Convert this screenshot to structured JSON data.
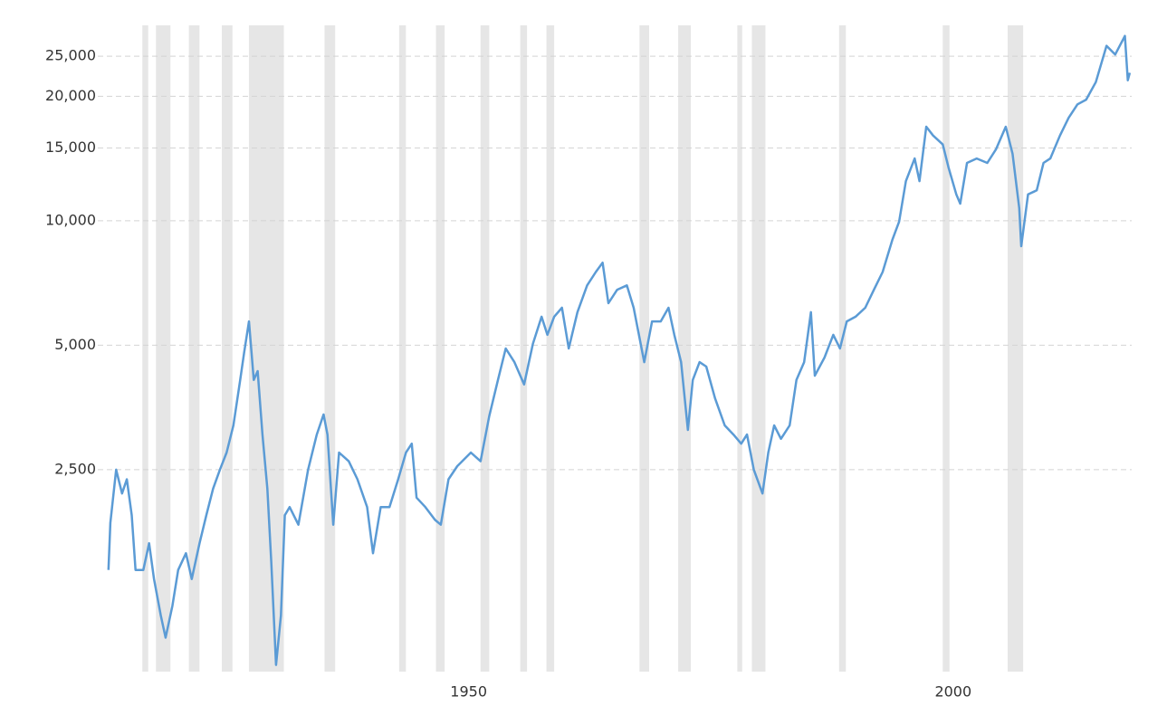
{
  "chart_data": {
    "type": "line",
    "ylog": true,
    "grid": true,
    "color": "#5b9bd5",
    "recession_color": "#e6e6e6",
    "xlim": [
      1914,
      2020.7
    ],
    "xticks": [
      1950,
      2000
    ],
    "ylim": [
      812,
      29700
    ],
    "yticks": [
      {
        "value": 2500,
        "label": "2,500"
      },
      {
        "value": 5000,
        "label": "5,000"
      },
      {
        "value": 10000,
        "label": "10,000"
      },
      {
        "value": 15000,
        "label": "15,000"
      },
      {
        "value": 20000,
        "label": "20,000"
      },
      {
        "value": 25000,
        "label": "25,000"
      }
    ],
    "recessions": [
      [
        1918.6,
        1919.2
      ],
      [
        1920.0,
        1921.5
      ],
      [
        1923.4,
        1924.5
      ],
      [
        1926.8,
        1927.9
      ],
      [
        1929.6,
        1933.2
      ],
      [
        1937.4,
        1938.5
      ],
      [
        1945.1,
        1945.8
      ],
      [
        1948.9,
        1949.8
      ],
      [
        1953.5,
        1954.4
      ],
      [
        1957.6,
        1958.3
      ],
      [
        1960.3,
        1961.1
      ],
      [
        1969.9,
        1970.9
      ],
      [
        1973.9,
        1975.2
      ],
      [
        1980.0,
        1980.5
      ],
      [
        1981.5,
        1982.9
      ],
      [
        1990.5,
        1991.2
      ],
      [
        2001.2,
        2001.9
      ],
      [
        2007.9,
        2009.5
      ]
    ],
    "x": [
      1915.1,
      1915.3,
      1915.9,
      1916.5,
      1917.0,
      1917.5,
      1917.9,
      1918.7,
      1919.3,
      1919.8,
      1920.5,
      1921.0,
      1921.7,
      1922.3,
      1923.1,
      1923.7,
      1924.5,
      1925.2,
      1925.9,
      1926.6,
      1927.3,
      1928.0,
      1928.7,
      1929.1,
      1929.6,
      1930.1,
      1930.5,
      1931.0,
      1931.5,
      1931.9,
      1932.4,
      1932.9,
      1933.3,
      1933.8,
      1934.7,
      1935.7,
      1936.6,
      1937.3,
      1937.7,
      1938.3,
      1938.9,
      1939.9,
      1940.8,
      1941.8,
      1942.4,
      1943.2,
      1944.1,
      1945.0,
      1945.8,
      1946.4,
      1946.9,
      1947.8,
      1948.8,
      1949.4,
      1950.2,
      1951.1,
      1952.5,
      1953.5,
      1954.4,
      1955.3,
      1956.1,
      1957.0,
      1958.0,
      1958.9,
      1959.8,
      1960.4,
      1961.1,
      1961.9,
      1962.6,
      1963.5,
      1964.5,
      1965.4,
      1966.1,
      1966.7,
      1967.6,
      1968.6,
      1969.3,
      1970.4,
      1971.2,
      1972.1,
      1972.9,
      1973.5,
      1974.2,
      1974.9,
      1975.4,
      1976.1,
      1976.8,
      1977.7,
      1978.7,
      1979.6,
      1980.4,
      1981.0,
      1981.7,
      1982.6,
      1983.2,
      1983.8,
      1984.5,
      1985.4,
      1986.1,
      1986.9,
      1987.6,
      1988.0,
      1989.0,
      1989.9,
      1990.6,
      1991.3,
      1992.2,
      1993.2,
      1994.1,
      1995.0,
      1996.0,
      1996.7,
      1997.4,
      1998.3,
      1998.8,
      1999.5,
      2000.2,
      2001.2,
      2001.8,
      2002.6,
      2003.0,
      2003.7,
      2004.7,
      2005.8,
      2006.7,
      2007.7,
      2008.4,
      2009.1,
      2009.3,
      2010.0,
      2010.9,
      2011.6,
      2012.3,
      2013.3,
      2014.2,
      2015.1,
      2016.0,
      2017.0,
      2018.1,
      2019.0,
      2020.0,
      2020.3,
      2020.5
    ],
    "values": [
      1430,
      1860,
      2500,
      2190,
      2370,
      1940,
      1430,
      1430,
      1660,
      1360,
      1110,
      981,
      1170,
      1430,
      1570,
      1360,
      1660,
      1940,
      2250,
      2500,
      2750,
      3200,
      4120,
      4790,
      5710,
      4120,
      4330,
      3040,
      2250,
      1500,
      843,
      1110,
      1940,
      2030,
      1840,
      2500,
      3040,
      3400,
      3040,
      1840,
      2750,
      2620,
      2370,
      2030,
      1570,
      2030,
      2030,
      2370,
      2750,
      2890,
      2140,
      2030,
      1890,
      1840,
      2370,
      2550,
      2750,
      2620,
      3370,
      4120,
      4910,
      4550,
      4020,
      5040,
      5860,
      5300,
      5860,
      6160,
      4910,
      6010,
      6980,
      7520,
      7920,
      6320,
      6810,
      6980,
      6160,
      4550,
      5710,
      5710,
      6160,
      5300,
      4550,
      3120,
      4120,
      4550,
      4440,
      3720,
      3200,
      3040,
      2890,
      3040,
      2500,
      2190,
      2750,
      3200,
      2970,
      3200,
      4120,
      4550,
      6010,
      4220,
      4670,
      5300,
      4910,
      5710,
      5860,
      6160,
      6810,
      7520,
      8990,
      9950,
      12470,
      14150,
      12470,
      16890,
      16080,
      15300,
      13450,
      11580,
      11000,
      13800,
      14150,
      13800,
      14900,
      16890,
      14530,
      10730,
      8680,
      11580,
      11850,
      13800,
      14150,
      16080,
      17750,
      19130,
      19630,
      21650,
      26500,
      25250,
      28000,
      21870,
      22800
    ]
  }
}
